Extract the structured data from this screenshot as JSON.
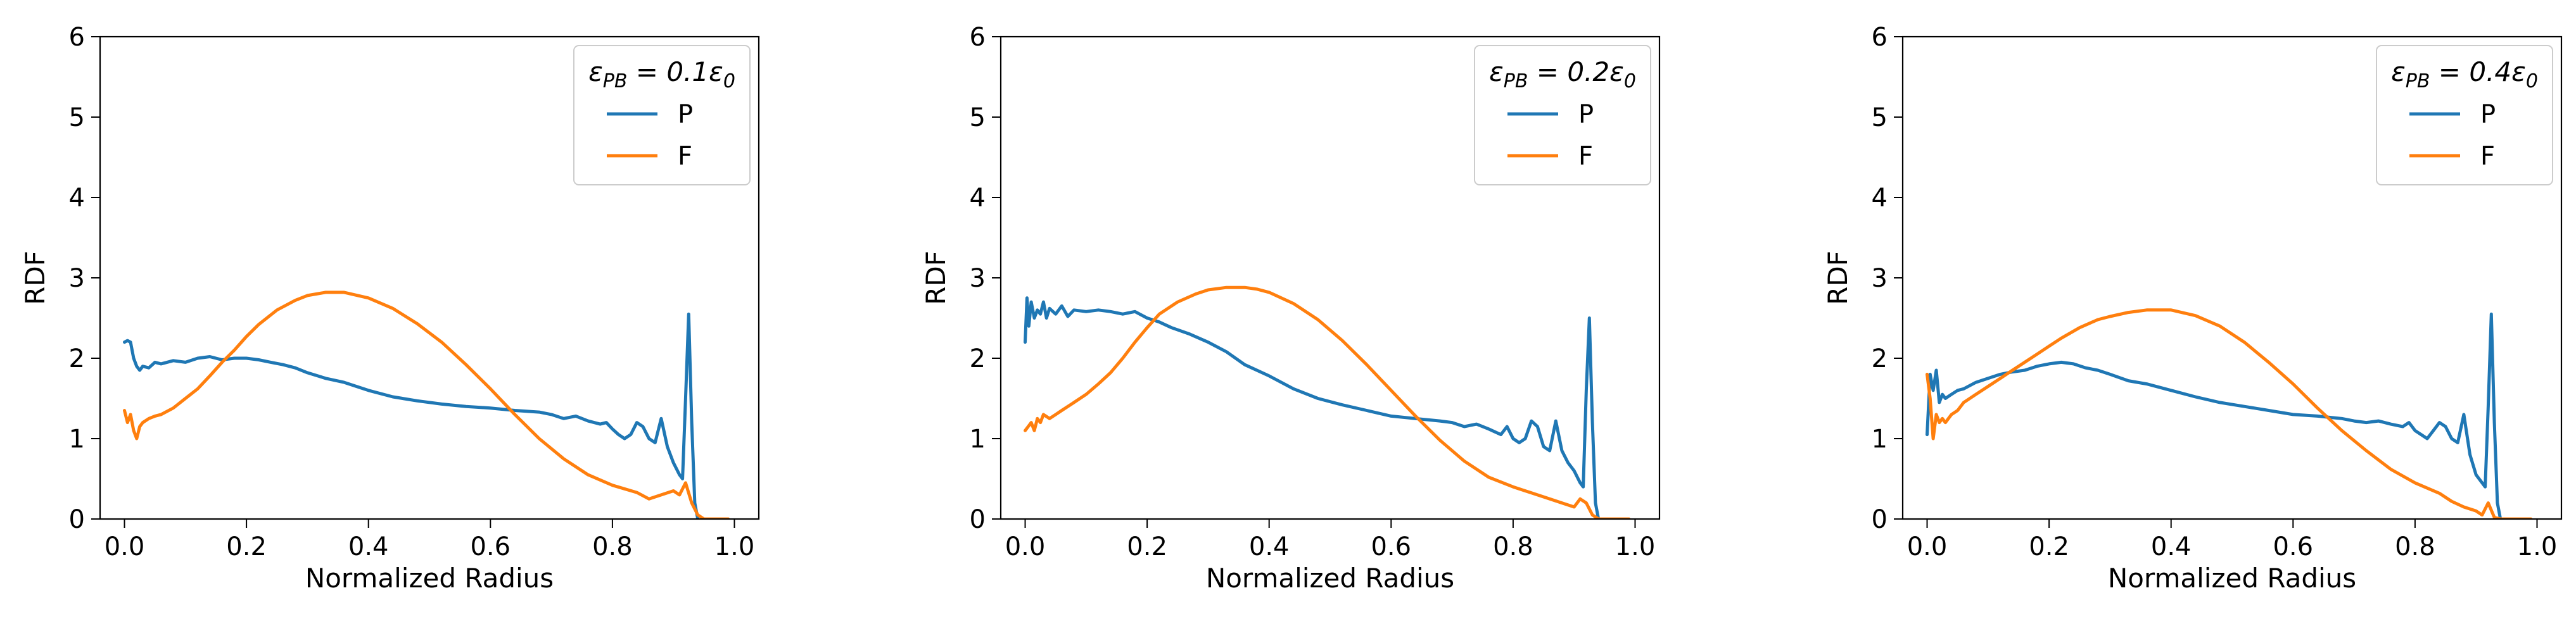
{
  "chart_data": [
    {
      "type": "line",
      "title": "",
      "legend_title": "εPB = 0.1ε0",
      "xlabel": "Normalized Radius",
      "ylabel": "RDF",
      "xlim": [
        -0.04,
        1.04
      ],
      "ylim": [
        0,
        6
      ],
      "xticks": [
        0.0,
        0.2,
        0.4,
        0.6,
        0.8,
        1.0
      ],
      "xtick_labels": [
        "0.0",
        "0.2",
        "0.4",
        "0.6",
        "0.8",
        "1.0"
      ],
      "yticks": [
        0,
        1,
        2,
        3,
        4,
        5,
        6
      ],
      "ytick_labels": [
        "0",
        "1",
        "2",
        "3",
        "4",
        "5",
        "6"
      ],
      "legend_position": "top-right",
      "series": [
        {
          "name": "P",
          "color": "#1f77b4",
          "x": [
            0.0,
            0.005,
            0.01,
            0.015,
            0.02,
            0.025,
            0.03,
            0.04,
            0.05,
            0.06,
            0.08,
            0.1,
            0.12,
            0.14,
            0.16,
            0.18,
            0.2,
            0.22,
            0.24,
            0.26,
            0.28,
            0.3,
            0.33,
            0.36,
            0.4,
            0.44,
            0.48,
            0.52,
            0.56,
            0.6,
            0.64,
            0.68,
            0.7,
            0.72,
            0.74,
            0.76,
            0.78,
            0.79,
            0.8,
            0.81,
            0.82,
            0.83,
            0.84,
            0.85,
            0.86,
            0.87,
            0.88,
            0.89,
            0.9,
            0.91,
            0.915,
            0.92,
            0.925,
            0.93,
            0.935,
            0.94
          ],
          "y": [
            2.2,
            2.22,
            2.2,
            2.0,
            1.9,
            1.85,
            1.9,
            1.88,
            1.95,
            1.93,
            1.97,
            1.95,
            2.0,
            2.02,
            1.98,
            2.0,
            2.0,
            1.98,
            1.95,
            1.92,
            1.88,
            1.82,
            1.75,
            1.7,
            1.6,
            1.52,
            1.47,
            1.43,
            1.4,
            1.38,
            1.35,
            1.33,
            1.3,
            1.25,
            1.28,
            1.22,
            1.18,
            1.2,
            1.12,
            1.05,
            1.0,
            1.05,
            1.2,
            1.15,
            1.0,
            0.95,
            1.25,
            0.9,
            0.7,
            0.55,
            0.5,
            1.5,
            2.55,
            1.2,
            0.2,
            0.0
          ]
        },
        {
          "name": "F",
          "color": "#ff7f0e",
          "x": [
            0.0,
            0.005,
            0.01,
            0.015,
            0.02,
            0.025,
            0.03,
            0.04,
            0.05,
            0.06,
            0.08,
            0.1,
            0.12,
            0.14,
            0.16,
            0.18,
            0.2,
            0.22,
            0.25,
            0.28,
            0.3,
            0.33,
            0.36,
            0.4,
            0.44,
            0.48,
            0.52,
            0.56,
            0.6,
            0.64,
            0.68,
            0.72,
            0.76,
            0.8,
            0.84,
            0.86,
            0.88,
            0.9,
            0.91,
            0.92,
            0.93,
            0.94,
            0.95,
            0.97,
            0.99
          ],
          "y": [
            1.35,
            1.2,
            1.3,
            1.1,
            1.0,
            1.15,
            1.2,
            1.25,
            1.28,
            1.3,
            1.38,
            1.5,
            1.62,
            1.78,
            1.95,
            2.1,
            2.27,
            2.42,
            2.6,
            2.72,
            2.78,
            2.82,
            2.82,
            2.75,
            2.62,
            2.43,
            2.2,
            1.92,
            1.62,
            1.3,
            1.0,
            0.75,
            0.55,
            0.42,
            0.33,
            0.25,
            0.3,
            0.35,
            0.3,
            0.45,
            0.2,
            0.05,
            0.0,
            0.0,
            0.0
          ]
        }
      ]
    },
    {
      "type": "line",
      "title": "",
      "legend_title": "εPB = 0.2ε0",
      "xlabel": "Normalized Radius",
      "ylabel": "RDF",
      "xlim": [
        -0.04,
        1.04
      ],
      "ylim": [
        0,
        6
      ],
      "xticks": [
        0.0,
        0.2,
        0.4,
        0.6,
        0.8,
        1.0
      ],
      "xtick_labels": [
        "0.0",
        "0.2",
        "0.4",
        "0.6",
        "0.8",
        "1.0"
      ],
      "yticks": [
        0,
        1,
        2,
        3,
        4,
        5,
        6
      ],
      "ytick_labels": [
        "0",
        "1",
        "2",
        "3",
        "4",
        "5",
        "6"
      ],
      "legend_position": "top-right",
      "series": [
        {
          "name": "P",
          "color": "#1f77b4",
          "x": [
            0.0,
            0.003,
            0.006,
            0.01,
            0.015,
            0.02,
            0.025,
            0.03,
            0.035,
            0.04,
            0.05,
            0.06,
            0.07,
            0.08,
            0.1,
            0.12,
            0.14,
            0.16,
            0.18,
            0.2,
            0.22,
            0.24,
            0.27,
            0.3,
            0.33,
            0.36,
            0.4,
            0.44,
            0.48,
            0.52,
            0.56,
            0.6,
            0.64,
            0.68,
            0.7,
            0.72,
            0.74,
            0.76,
            0.78,
            0.79,
            0.8,
            0.81,
            0.82,
            0.83,
            0.84,
            0.85,
            0.86,
            0.87,
            0.88,
            0.89,
            0.9,
            0.91,
            0.915,
            0.92,
            0.925,
            0.93,
            0.935,
            0.94
          ],
          "y": [
            2.2,
            2.75,
            2.4,
            2.7,
            2.5,
            2.6,
            2.55,
            2.7,
            2.5,
            2.62,
            2.55,
            2.65,
            2.52,
            2.6,
            2.58,
            2.6,
            2.58,
            2.55,
            2.58,
            2.5,
            2.45,
            2.38,
            2.3,
            2.2,
            2.08,
            1.92,
            1.78,
            1.62,
            1.5,
            1.42,
            1.35,
            1.28,
            1.25,
            1.22,
            1.2,
            1.15,
            1.18,
            1.12,
            1.05,
            1.15,
            1.0,
            0.95,
            1.0,
            1.22,
            1.15,
            0.9,
            0.85,
            1.22,
            0.85,
            0.7,
            0.6,
            0.45,
            0.4,
            1.6,
            2.5,
            1.2,
            0.2,
            0.0
          ]
        },
        {
          "name": "F",
          "color": "#ff7f0e",
          "x": [
            0.0,
            0.005,
            0.01,
            0.015,
            0.02,
            0.025,
            0.03,
            0.04,
            0.05,
            0.06,
            0.08,
            0.1,
            0.12,
            0.14,
            0.16,
            0.18,
            0.2,
            0.22,
            0.25,
            0.28,
            0.3,
            0.33,
            0.36,
            0.38,
            0.4,
            0.44,
            0.48,
            0.52,
            0.56,
            0.6,
            0.64,
            0.68,
            0.72,
            0.76,
            0.8,
            0.84,
            0.86,
            0.88,
            0.9,
            0.91,
            0.92,
            0.93,
            0.94,
            0.95,
            0.97,
            0.99
          ],
          "y": [
            1.1,
            1.15,
            1.2,
            1.1,
            1.25,
            1.2,
            1.3,
            1.25,
            1.3,
            1.35,
            1.45,
            1.55,
            1.68,
            1.82,
            2.0,
            2.2,
            2.38,
            2.55,
            2.7,
            2.8,
            2.85,
            2.88,
            2.88,
            2.86,
            2.82,
            2.68,
            2.48,
            2.22,
            1.92,
            1.6,
            1.28,
            0.98,
            0.72,
            0.52,
            0.4,
            0.3,
            0.25,
            0.2,
            0.15,
            0.25,
            0.2,
            0.05,
            0.0,
            0.0,
            0.0,
            0.0
          ]
        }
      ]
    },
    {
      "type": "line",
      "title": "",
      "legend_title": "εPB = 0.4ε0",
      "xlabel": "Normalized Radius",
      "ylabel": "RDF",
      "xlim": [
        -0.04,
        1.04
      ],
      "ylim": [
        0,
        6
      ],
      "xticks": [
        0.0,
        0.2,
        0.4,
        0.6,
        0.8,
        1.0
      ],
      "xtick_labels": [
        "0.0",
        "0.2",
        "0.4",
        "0.6",
        "0.8",
        "1.0"
      ],
      "yticks": [
        0,
        1,
        2,
        3,
        4,
        5,
        6
      ],
      "ytick_labels": [
        "0",
        "1",
        "2",
        "3",
        "4",
        "5",
        "6"
      ],
      "legend_position": "top-right",
      "series": [
        {
          "name": "P",
          "color": "#1f77b4",
          "x": [
            0.0,
            0.005,
            0.01,
            0.015,
            0.02,
            0.025,
            0.03,
            0.04,
            0.05,
            0.06,
            0.08,
            0.1,
            0.12,
            0.14,
            0.16,
            0.18,
            0.2,
            0.22,
            0.24,
            0.26,
            0.28,
            0.3,
            0.33,
            0.36,
            0.4,
            0.44,
            0.48,
            0.52,
            0.56,
            0.6,
            0.64,
            0.68,
            0.7,
            0.72,
            0.74,
            0.76,
            0.78,
            0.79,
            0.8,
            0.81,
            0.82,
            0.83,
            0.84,
            0.85,
            0.86,
            0.87,
            0.88,
            0.89,
            0.9,
            0.91,
            0.915,
            0.92,
            0.925,
            0.93,
            0.935,
            0.94
          ],
          "y": [
            1.05,
            1.8,
            1.6,
            1.85,
            1.45,
            1.55,
            1.5,
            1.55,
            1.6,
            1.62,
            1.7,
            1.75,
            1.8,
            1.83,
            1.85,
            1.9,
            1.93,
            1.95,
            1.93,
            1.88,
            1.85,
            1.8,
            1.72,
            1.68,
            1.6,
            1.52,
            1.45,
            1.4,
            1.35,
            1.3,
            1.28,
            1.25,
            1.22,
            1.2,
            1.22,
            1.18,
            1.15,
            1.2,
            1.1,
            1.05,
            1.0,
            1.1,
            1.2,
            1.15,
            1.0,
            0.95,
            1.3,
            0.8,
            0.55,
            0.45,
            0.4,
            1.4,
            2.55,
            1.2,
            0.2,
            0.0
          ]
        },
        {
          "name": "F",
          "color": "#ff7f0e",
          "x": [
            0.0,
            0.005,
            0.01,
            0.015,
            0.02,
            0.025,
            0.03,
            0.04,
            0.05,
            0.06,
            0.08,
            0.1,
            0.12,
            0.14,
            0.16,
            0.18,
            0.2,
            0.22,
            0.25,
            0.28,
            0.3,
            0.33,
            0.36,
            0.4,
            0.44,
            0.48,
            0.52,
            0.56,
            0.6,
            0.64,
            0.68,
            0.72,
            0.76,
            0.8,
            0.84,
            0.86,
            0.88,
            0.9,
            0.91,
            0.92,
            0.93,
            0.94,
            0.95,
            0.97,
            0.99
          ],
          "y": [
            1.8,
            1.5,
            1.0,
            1.3,
            1.2,
            1.25,
            1.2,
            1.3,
            1.35,
            1.45,
            1.55,
            1.65,
            1.75,
            1.85,
            1.95,
            2.05,
            2.15,
            2.25,
            2.38,
            2.48,
            2.52,
            2.57,
            2.6,
            2.6,
            2.53,
            2.4,
            2.2,
            1.95,
            1.68,
            1.38,
            1.1,
            0.85,
            0.62,
            0.45,
            0.32,
            0.22,
            0.15,
            0.1,
            0.05,
            0.2,
            0.02,
            0.0,
            0.0,
            0.0,
            0.0
          ]
        }
      ]
    }
  ]
}
